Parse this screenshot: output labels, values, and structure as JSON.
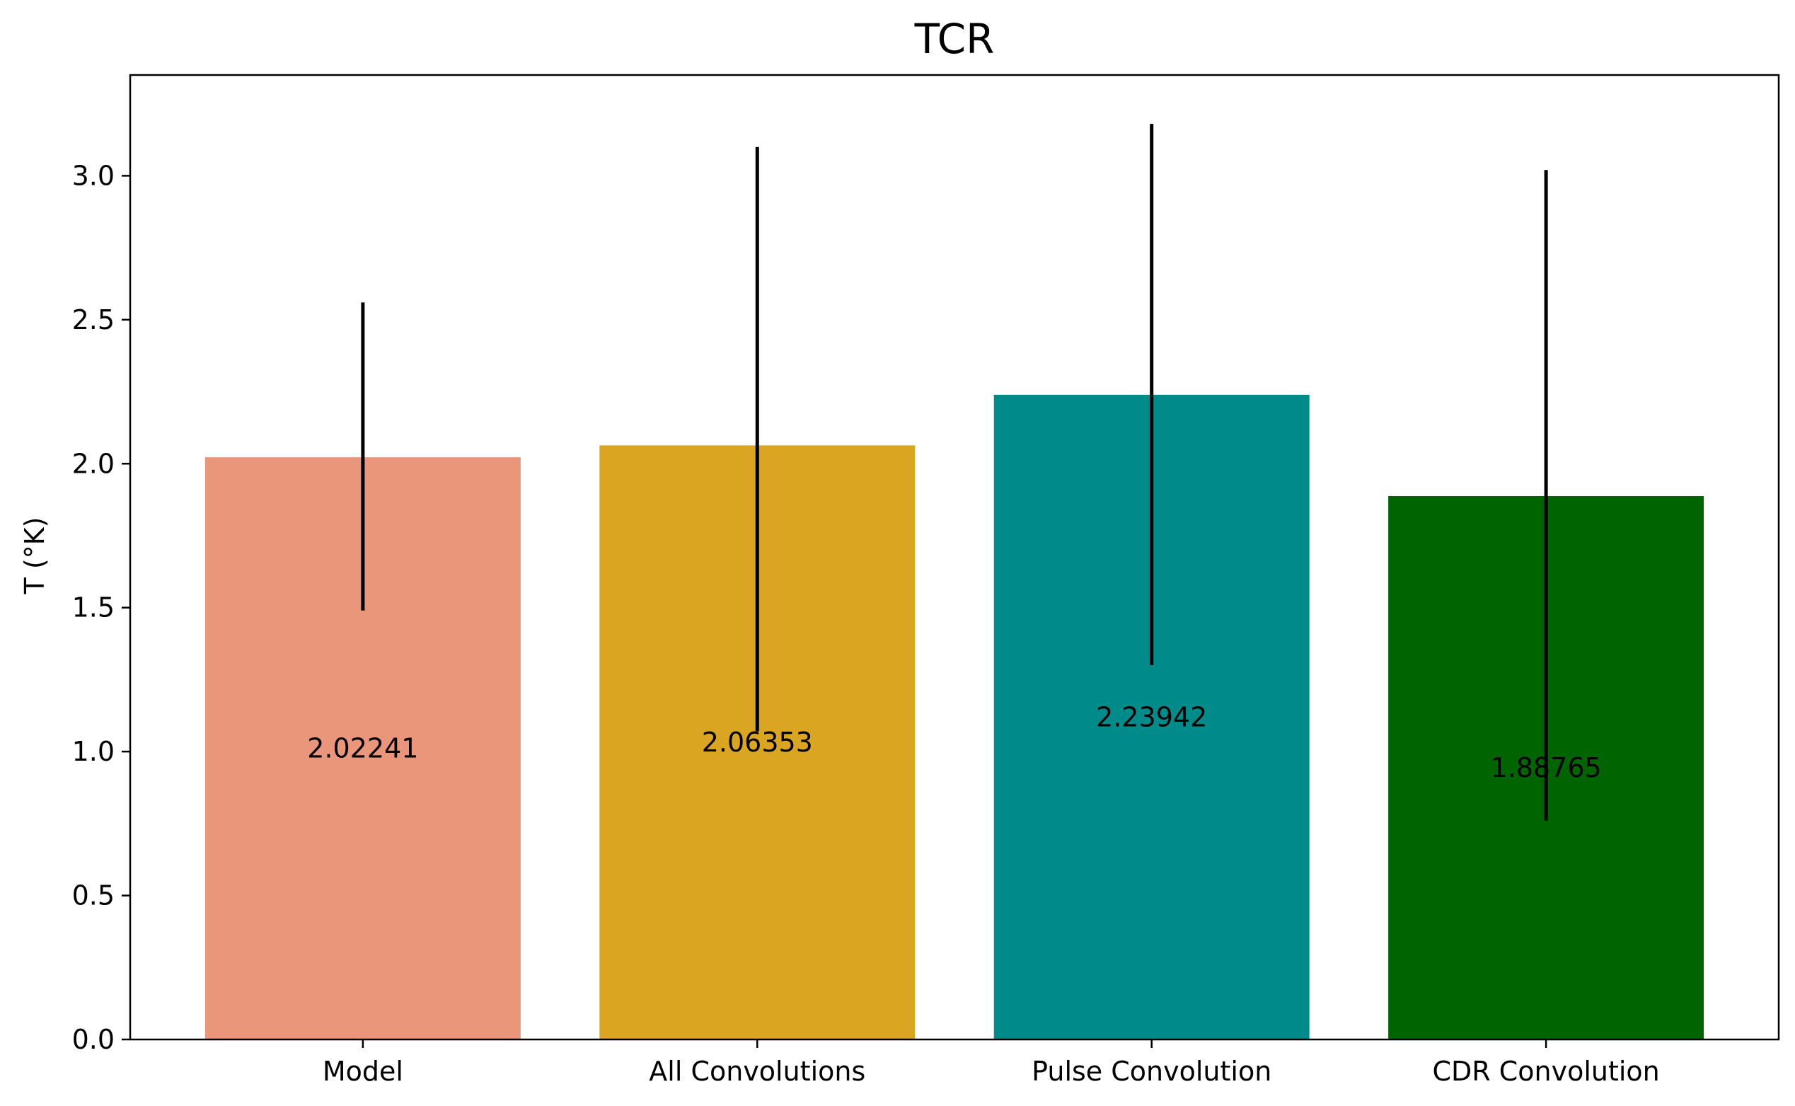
{
  "chart_data": {
    "type": "bar",
    "title": "TCR",
    "xlabel": "",
    "ylabel": "T (°K)",
    "ylim": [
      0,
      3.35
    ],
    "yticks": [
      "0.0",
      "0.5",
      "1.0",
      "1.5",
      "2.0",
      "2.5",
      "3.0"
    ],
    "grid": false,
    "legend": "none",
    "categories": [
      "Model",
      "All Convolutions",
      "Pulse Convolution",
      "CDR Convolution"
    ],
    "values": [
      2.02241,
      2.06353,
      2.23942,
      1.88765
    ],
    "value_labels": [
      "2.02241",
      "2.06353",
      "2.23942",
      "1.88765"
    ],
    "error_low": [
      1.49,
      1.07,
      1.3,
      0.76
    ],
    "error_high": [
      2.56,
      3.1,
      3.18,
      3.02
    ],
    "colors": [
      "#E9967A",
      "#DAA520",
      "#008B8B",
      "#006400"
    ],
    "error_color": "#000000"
  }
}
